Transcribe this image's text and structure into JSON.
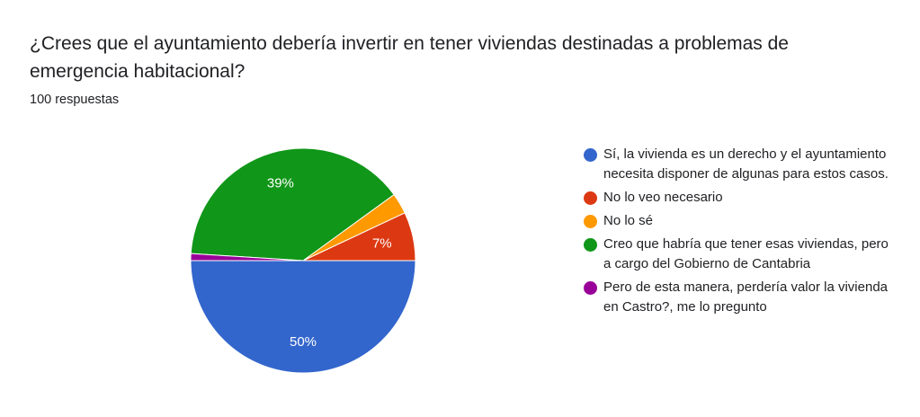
{
  "question": {
    "title": "¿Crees que el ayuntamiento debería invertir en tener viviendas destinadas a problemas de emergencia habitacional?",
    "response_count": "100 respuestas"
  },
  "chart_data": {
    "type": "pie",
    "categories": [
      "Sí, la vivienda es un derecho y el ayuntamiento necesita disponer de algunas para estos casos.",
      "No lo veo necesario",
      "No lo sé",
      "Creo que habría que tener esas viviendas, pero a cargo del Gobierno de Cantabria",
      "Pero de esta manera, perdería valor la vivienda en Castro?, me lo pregunto"
    ],
    "values": [
      50,
      7,
      3,
      39,
      1
    ],
    "data_labels": [
      "50%",
      "7%",
      "",
      "39%",
      ""
    ],
    "colors": [
      "#3366cc",
      "#dc3912",
      "#ff9900",
      "#109618",
      "#990099"
    ],
    "legend_position": "right",
    "start": "9 o'clock, counter-clockwise"
  }
}
